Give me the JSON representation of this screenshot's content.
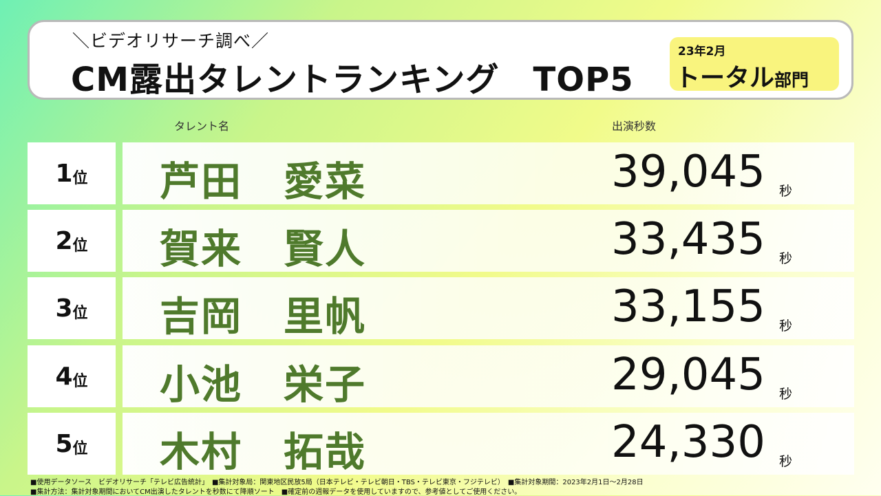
{
  "header": {
    "subtitle": "＼ビデオリサーチ調べ／",
    "title": "CM露出タレントランキング　TOP5",
    "badge_date": "23年2月",
    "badge_main": "トータル",
    "badge_suffix": "部門"
  },
  "columns": {
    "name": "タレント名",
    "seconds": "出演秒数"
  },
  "rank_suffix": "位",
  "seconds_unit": "秒",
  "ranking": [
    {
      "rank": "1",
      "name": "芦田　愛菜",
      "seconds": "39,045"
    },
    {
      "rank": "2",
      "name": "賀来　賢人",
      "seconds": "33,435"
    },
    {
      "rank": "3",
      "name": "吉岡　里帆",
      "seconds": "33,155"
    },
    {
      "rank": "4",
      "name": "小池　栄子",
      "seconds": "29,045"
    },
    {
      "rank": "5",
      "name": "木村　拓哉",
      "seconds": "24,330"
    }
  ],
  "footnotes": [
    "■使用データソース　ビデオリサーチ「テレビ広告統計」　■集計対象局：関東地区民放5局（日本テレビ・テレビ朝日・TBS・テレビ東京・フジテレビ）　■集計対象期間：2023年2月1日～2月28日",
    "■集計方法：集計対象期間においてCM出演したタレントを秒数にて降順ソート　■確定前の週報データを使用していますので、参考値としてご使用ください。"
  ],
  "colors": {
    "name_green": "#4f7a2c",
    "badge_yellow": "#f9f47e"
  }
}
